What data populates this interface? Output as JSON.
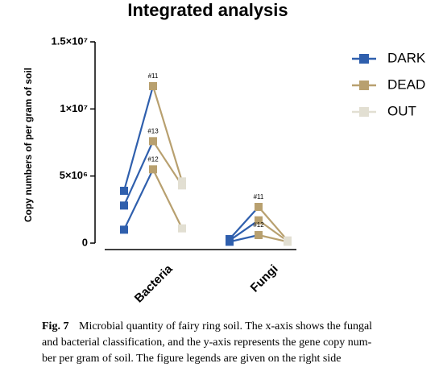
{
  "chart_data": {
    "type": "paired-line",
    "title": "Integrated analysis",
    "y_label": "Copy numbers of per gram of soil",
    "categories": [
      "Bacteria",
      "Fungi"
    ],
    "series": [
      {
        "name": "DARK",
        "color": "#2f5fad",
        "values": [
          [
            3900000,
            2800000,
            1000000
          ],
          [
            300000,
            200000,
            100000
          ]
        ]
      },
      {
        "name": "DEAD",
        "color": "#b8a06f",
        "values": [
          [
            11700000,
            7600000,
            5500000
          ],
          [
            2700000,
            1700000,
            600000
          ]
        ],
        "point_labels": [
          [
            "#11",
            "#13",
            "#12"
          ],
          [
            "#11",
            null,
            "#12"
          ]
        ]
      },
      {
        "name": "OUT",
        "color": "#e2dfd2",
        "values": [
          [
            4600000,
            4300000,
            1100000
          ],
          [
            200000,
            150000,
            100000
          ]
        ]
      }
    ],
    "ylim": [
      0,
      15000000
    ],
    "yticks": [
      0,
      {
        "value": 5000000,
        "label": "5×10⁶"
      },
      {
        "value": 10000000,
        "label": "1×10⁷"
      },
      {
        "value": 15000000,
        "label": "1.5×10⁷"
      }
    ],
    "legend": "right"
  },
  "caption": {
    "label": "Fig. 7",
    "lines": [
      "Microbial quantity of fairy ring soil. The x-axis shows the fungal",
      "and bacterial classification, and the y-axis represents the gene copy num-",
      "ber per gram of soil. The figure legends are given on the right side"
    ]
  }
}
